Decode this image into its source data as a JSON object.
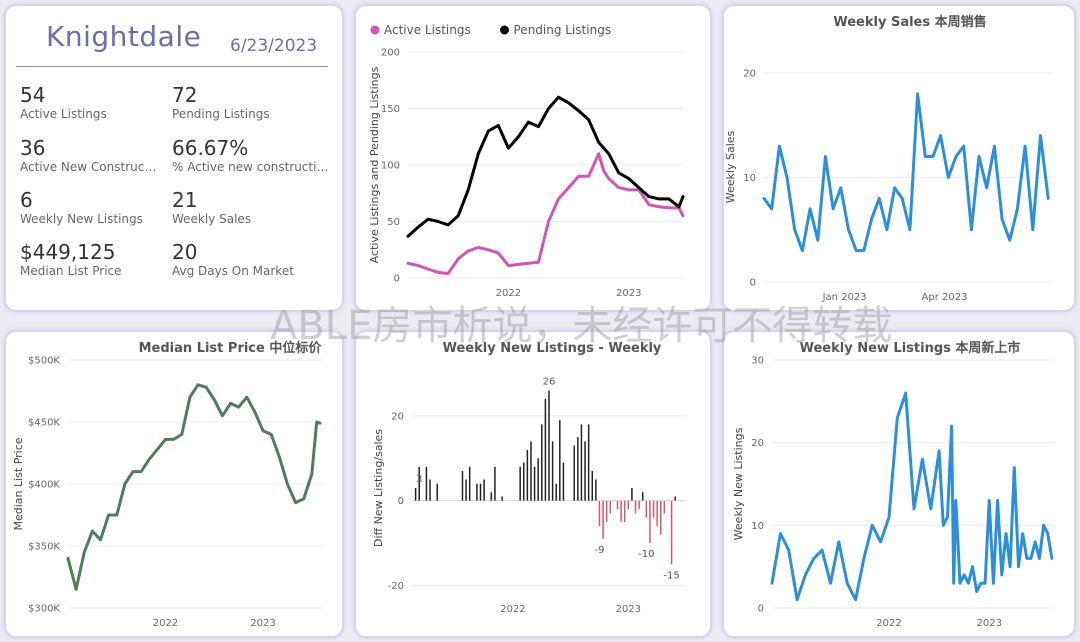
{
  "kpi": {
    "city": "Knightdale",
    "date": "6/23/2023",
    "items": [
      {
        "value": "54",
        "label": "Active Listings"
      },
      {
        "value": "72",
        "label": "Pending Listings"
      },
      {
        "value": "36",
        "label": "Active New Constructi..."
      },
      {
        "value": "66.67%",
        "label": "% Active new constructions"
      },
      {
        "value": "6",
        "label": "Weekly New Listings"
      },
      {
        "value": "21",
        "label": "Weekly Sales"
      },
      {
        "value": "$449,125",
        "label": "Median List Price"
      },
      {
        "value": "20",
        "label": "Avg Days On Market"
      }
    ]
  },
  "watermark": "ABLE房市析说，未经许可不得转载",
  "chart_data": [
    {
      "id": "active_pending",
      "type": "line",
      "title": "",
      "xlabel": "",
      "ylabel": "Active Listings and Pending Listings",
      "ylim": [
        0,
        200
      ],
      "yticks": [
        0,
        50,
        100,
        150,
        200
      ],
      "xticks": [
        {
          "label": "2022",
          "x": 12
        },
        {
          "label": "2023",
          "x": 24
        }
      ],
      "xlim": [
        2,
        29.5
      ],
      "legend": "top-left",
      "series": [
        {
          "name": "Active Listings",
          "color": "#d454b4",
          "x": [
            2,
            3,
            4,
            5,
            6,
            7,
            8,
            9,
            10,
            11,
            12,
            13,
            14,
            15,
            16,
            17,
            18,
            19,
            20,
            21,
            21.5,
            22,
            23,
            24,
            25,
            26,
            27,
            28,
            29,
            29.4
          ],
          "y": [
            13,
            11,
            8,
            5,
            4,
            17,
            24,
            27,
            25,
            22,
            11,
            12,
            13,
            14,
            50,
            70,
            80,
            90,
            90,
            110,
            95,
            88,
            80,
            78,
            78,
            65,
            63,
            62,
            62,
            55
          ]
        },
        {
          "name": "Pending Listings",
          "color": "#000000",
          "x": [
            2,
            3,
            4,
            5,
            6,
            7,
            8,
            9,
            10,
            11,
            12,
            13,
            14,
            15,
            16,
            17,
            18,
            19,
            20,
            21,
            22,
            23,
            24,
            25,
            26,
            27,
            28,
            29,
            29.4
          ],
          "y": [
            37,
            45,
            52,
            50,
            47,
            55,
            78,
            110,
            130,
            135,
            115,
            125,
            138,
            134,
            150,
            160,
            155,
            148,
            140,
            120,
            110,
            93,
            88,
            80,
            72,
            70,
            70,
            63,
            72
          ]
        }
      ]
    },
    {
      "id": "weekly_sales",
      "type": "line",
      "title": "Weekly Sales 本周销售",
      "xlabel": "",
      "ylabel": "Weekly Sales",
      "ylim": [
        0,
        22
      ],
      "yticks": [
        0,
        10,
        20
      ],
      "xticks": [
        {
          "label": "Jan 2023",
          "x": 10.5
        },
        {
          "label": "Apr 2023",
          "x": 23.5
        }
      ],
      "xlim": [
        0,
        37.5
      ],
      "series": [
        {
          "name": "Weekly Sales",
          "color": "#2b8fde",
          "x": [
            0,
            1,
            2,
            3,
            4,
            5,
            6,
            7,
            8,
            9,
            10,
            11,
            12,
            13,
            14,
            15,
            16,
            17,
            18,
            19,
            20,
            21,
            22,
            23,
            24,
            25,
            26,
            27,
            28,
            29,
            30,
            31,
            32,
            33,
            34,
            35,
            36,
            37
          ],
          "y": [
            8,
            7,
            13,
            10,
            5,
            3,
            7,
            4,
            12,
            7,
            9,
            5,
            3,
            3,
            6,
            8,
            5,
            9,
            8,
            5,
            18,
            12,
            12,
            14,
            10,
            12,
            13,
            5,
            12,
            9,
            13,
            6,
            4,
            7,
            13,
            5,
            14,
            8
          ]
        }
      ]
    },
    {
      "id": "median_list_price",
      "type": "line",
      "title": "Median List Price  中位标价",
      "xlabel": "",
      "ylabel": "Median List Price",
      "ylim": [
        300,
        500
      ],
      "ylim_unit": "K",
      "yticks": [
        300,
        350,
        400,
        450,
        500
      ],
      "ytick_labels": [
        "$300K",
        "$350K",
        "$400K",
        "$450K",
        "$500K"
      ],
      "xticks": [
        {
          "label": "2022",
          "x": 12
        },
        {
          "label": "2023",
          "x": 24
        }
      ],
      "xlim": [
        0,
        31.5
      ],
      "series": [
        {
          "name": "Median List Price",
          "color": "#527a5c",
          "x": [
            0,
            1,
            2,
            3,
            4,
            5,
            6,
            7,
            8,
            9,
            10,
            11,
            12,
            13,
            14,
            15,
            16,
            17,
            18,
            19,
            20,
            21,
            22,
            23,
            24,
            25,
            26,
            27,
            28,
            29,
            30,
            30.6,
            31
          ],
          "y": [
            340,
            315,
            345,
            362,
            355,
            375,
            375,
            400,
            410,
            410,
            420,
            428,
            436,
            436,
            440,
            470,
            480,
            478,
            468,
            455,
            465,
            462,
            470,
            458,
            443,
            440,
            422,
            400,
            385,
            388,
            408,
            450,
            449
          ]
        }
      ]
    },
    {
      "id": "diff_new_listings_sales",
      "type": "bar",
      "title": "Weekly New Listings - Weekly",
      "xlabel": "",
      "ylabel": "Diff New Listing/sales",
      "ylim": [
        -22,
        28
      ],
      "yticks": [
        -20,
        0,
        20
      ],
      "xticks": [
        {
          "label": "2022",
          "x": 27
        },
        {
          "label": "2023",
          "x": 59
        }
      ],
      "xlim": [
        -1,
        75
      ],
      "data_labels": [
        {
          "text": "26",
          "x": 37,
          "y": 26
        },
        {
          "text": "3",
          "x": 1,
          "y": 3
        },
        {
          "text": "-9",
          "x": 51,
          "y": -9
        },
        {
          "text": "-10",
          "x": 64,
          "y": -10
        },
        {
          "text": "-15",
          "x": 71,
          "y": -15
        }
      ],
      "values": [
        3,
        8,
        0,
        8,
        5,
        0,
        4,
        0,
        0,
        0,
        0,
        0,
        0,
        7,
        5,
        8,
        0,
        4,
        4,
        5,
        0,
        2,
        8,
        0,
        1,
        0,
        0,
        0,
        0,
        8,
        9,
        12,
        14,
        8,
        10,
        18,
        24,
        26,
        14,
        4,
        19,
        9,
        0,
        0,
        13,
        15,
        18,
        14,
        18,
        7,
        5,
        -6,
        -9,
        -5,
        -3,
        0,
        -2,
        -5,
        -5,
        -2,
        3,
        -3,
        -2,
        2,
        -4,
        -10,
        -4,
        -6,
        -8,
        -3,
        0,
        -15,
        1
      ],
      "positive_color": "#222222",
      "negative_color": "#d05a6e"
    },
    {
      "id": "weekly_new_listings",
      "type": "line",
      "title": "Weekly New Listings  本周新上市",
      "xlabel": "",
      "ylabel": "Weekly New Listings",
      "ylim": [
        0,
        30
      ],
      "yticks": [
        0,
        10,
        20,
        30
      ],
      "xticks": [
        {
          "label": "2022",
          "x": 28
        },
        {
          "label": "2023",
          "x": 52
        }
      ],
      "xlim": [
        0,
        67.5
      ],
      "series": [
        {
          "name": "Weekly New Listings",
          "color": "#2b8fde",
          "x": [
            0,
            2,
            4,
            6,
            8,
            10,
            12,
            14,
            16,
            18,
            20,
            22,
            24,
            26,
            28,
            30,
            32,
            34,
            36,
            38,
            40,
            41,
            42,
            43,
            43.5,
            44,
            45,
            46,
            47,
            48,
            49,
            50,
            51,
            52,
            53,
            54,
            55,
            56,
            57,
            58,
            59,
            60,
            61,
            62,
            63,
            64,
            65,
            66,
            67
          ],
          "y": [
            3,
            9,
            7,
            1,
            4,
            6,
            7,
            3,
            8,
            3,
            1,
            6,
            10,
            8,
            11,
            23,
            26,
            12,
            18,
            12,
            19,
            10,
            11,
            22,
            3,
            13,
            3,
            4,
            3,
            5,
            2,
            3,
            3,
            13,
            3,
            13,
            4,
            9,
            5,
            17,
            5,
            9,
            6,
            6,
            8,
            6,
            10,
            9,
            6
          ]
        }
      ]
    }
  ]
}
